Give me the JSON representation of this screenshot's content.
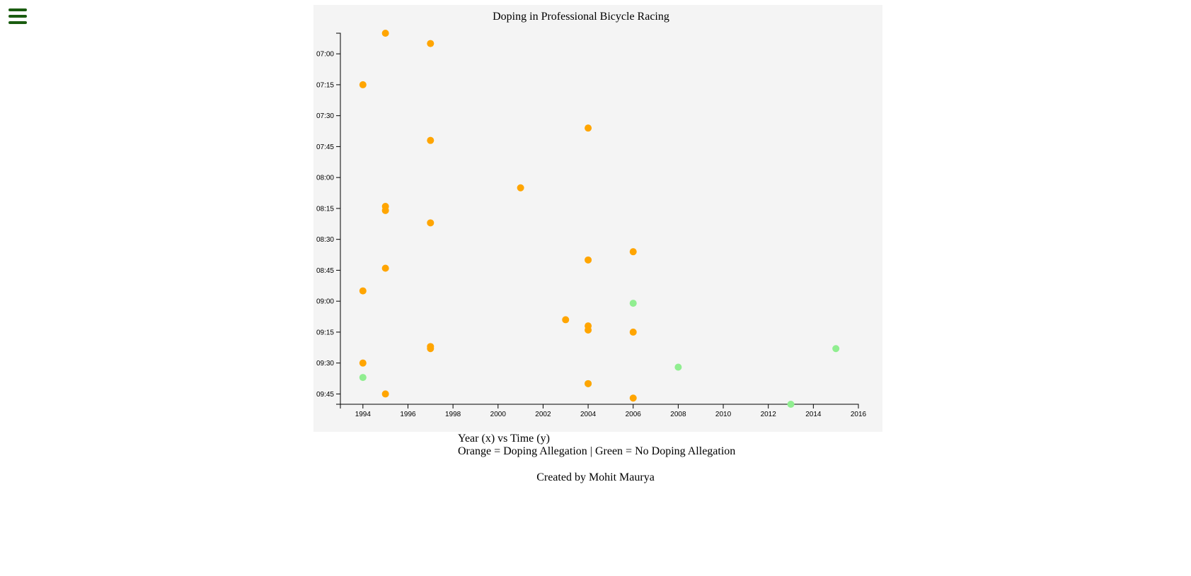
{
  "menu": {
    "icon": "hamburger-menu-icon",
    "color": "#1a5c10"
  },
  "chart_data": {
    "type": "scatter",
    "title": "Doping in Professional Bicycle Racing",
    "xlabel": "",
    "ylabel": "",
    "x_axis": {
      "type": "year",
      "range": [
        1993,
        2016
      ],
      "ticks": [
        "1994",
        "1996",
        "1998",
        "2000",
        "2002",
        "2004",
        "2006",
        "2008",
        "2010",
        "2012",
        "2014",
        "2016"
      ]
    },
    "y_axis": {
      "type": "time (mm:ss)",
      "range": [
        "06:50",
        "09:50"
      ],
      "inverted": true,
      "ticks": [
        "07:00",
        "07:15",
        "07:30",
        "07:45",
        "08:00",
        "08:15",
        "08:30",
        "08:45",
        "09:00",
        "09:15",
        "09:30",
        "09:45"
      ]
    },
    "grid": false,
    "background": "#f4f4f4",
    "series": [
      {
        "color": "#ffa500",
        "points": [
          {
            "x": 1995,
            "y": "06:50"
          },
          {
            "x": 1997,
            "y": "06:55"
          },
          {
            "x": 1994,
            "y": "07:15"
          },
          {
            "x": 2004,
            "y": "07:36"
          },
          {
            "x": 1997,
            "y": "07:42"
          },
          {
            "x": 2001,
            "y": "08:05"
          },
          {
            "x": 1995,
            "y": "08:14"
          },
          {
            "x": 1995,
            "y": "08:16"
          },
          {
            "x": 1997,
            "y": "08:22"
          },
          {
            "x": 2006,
            "y": "08:36"
          },
          {
            "x": 2004,
            "y": "08:40"
          },
          {
            "x": 1995,
            "y": "08:44"
          },
          {
            "x": 1994,
            "y": "08:55"
          },
          {
            "x": 2003,
            "y": "09:09"
          },
          {
            "x": 2004,
            "y": "09:12"
          },
          {
            "x": 2004,
            "y": "09:14"
          },
          {
            "x": 2006,
            "y": "09:15"
          },
          {
            "x": 1997,
            "y": "09:22"
          },
          {
            "x": 1997,
            "y": "09:23"
          },
          {
            "x": 1994,
            "y": "09:30"
          },
          {
            "x": 2004,
            "y": "09:40"
          },
          {
            "x": 1995,
            "y": "09:45"
          },
          {
            "x": 2006,
            "y": "09:47"
          }
        ]
      },
      {
        "color": "#90ee90",
        "points": [
          {
            "x": 2006,
            "y": "09:01"
          },
          {
            "x": 2015,
            "y": "09:23"
          },
          {
            "x": 2008,
            "y": "09:32"
          },
          {
            "x": 1994,
            "y": "09:37"
          },
          {
            "x": 2004,
            "y": "09:40"
          },
          {
            "x": 2013,
            "y": "09:50"
          }
        ]
      }
    ]
  },
  "caption": {
    "line1": "Year (x) vs Time (y)",
    "line2": "Orange = Doping Allegation | Green = No Doping Allegation"
  },
  "footer": {
    "credit": "Created by Mohit Maurya"
  }
}
